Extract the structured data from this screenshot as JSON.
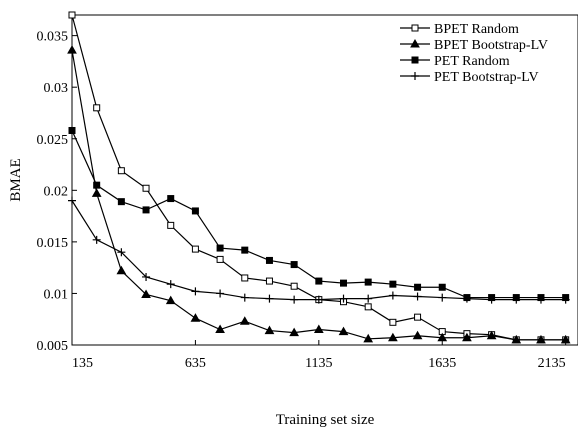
{
  "chart_data": {
    "type": "line",
    "title": "",
    "xlabel": "Training set size",
    "ylabel": "BMAE",
    "xlim": [
      135,
      2185
    ],
    "ylim": [
      0.005,
      0.037
    ],
    "x_ticks": [
      "135",
      "635",
      "1135",
      "1635",
      "2135"
    ],
    "y_ticks": [
      "0.005",
      "0.01",
      "0.015",
      "0.02",
      "0.025",
      "0.03",
      "0.035"
    ],
    "grid": false,
    "legend_position": "top-right",
    "x": [
      135,
      235,
      335,
      435,
      535,
      635,
      735,
      835,
      935,
      1035,
      1135,
      1235,
      1335,
      1435,
      1535,
      1635,
      1735,
      1835,
      1935,
      2035,
      2135
    ],
    "series": [
      {
        "name": "BPET Random",
        "marker": "open-square",
        "values": [
          0.037,
          0.028,
          0.0219,
          0.0202,
          0.0166,
          0.0143,
          0.0133,
          0.0115,
          0.0112,
          0.0107,
          0.0094,
          0.0092,
          0.0087,
          0.0072,
          0.0077,
          0.0063,
          0.0061,
          0.006,
          0.0055,
          0.0055,
          0.0055
        ]
      },
      {
        "name": "BPET Bootstrap-LV",
        "marker": "filled-triangle",
        "values": [
          0.0336,
          0.0197,
          0.0122,
          0.0099,
          0.0093,
          0.0076,
          0.0065,
          0.0073,
          0.0064,
          0.0062,
          0.0065,
          0.0063,
          0.0056,
          0.0057,
          0.0059,
          0.0057,
          0.0057,
          0.0059,
          0.0055,
          0.0055,
          0.0055
        ]
      },
      {
        "name": "PET Random",
        "marker": "filled-square",
        "values": [
          0.0258,
          0.0205,
          0.0189,
          0.0181,
          0.0192,
          0.018,
          0.0144,
          0.0142,
          0.0132,
          0.0128,
          0.0112,
          0.011,
          0.0111,
          0.0109,
          0.0106,
          0.0106,
          0.0096,
          0.0096,
          0.0096,
          0.0096,
          0.0096
        ]
      },
      {
        "name": "PET Bootstrap-LV",
        "marker": "plus",
        "values": [
          0.019,
          0.0152,
          0.014,
          0.0116,
          0.0109,
          0.0102,
          0.01,
          0.0096,
          0.0095,
          0.0094,
          0.0094,
          0.0095,
          0.0095,
          0.0098,
          0.0097,
          0.0096,
          0.0095,
          0.0094,
          0.0094,
          0.0094,
          0.0094
        ]
      }
    ]
  }
}
